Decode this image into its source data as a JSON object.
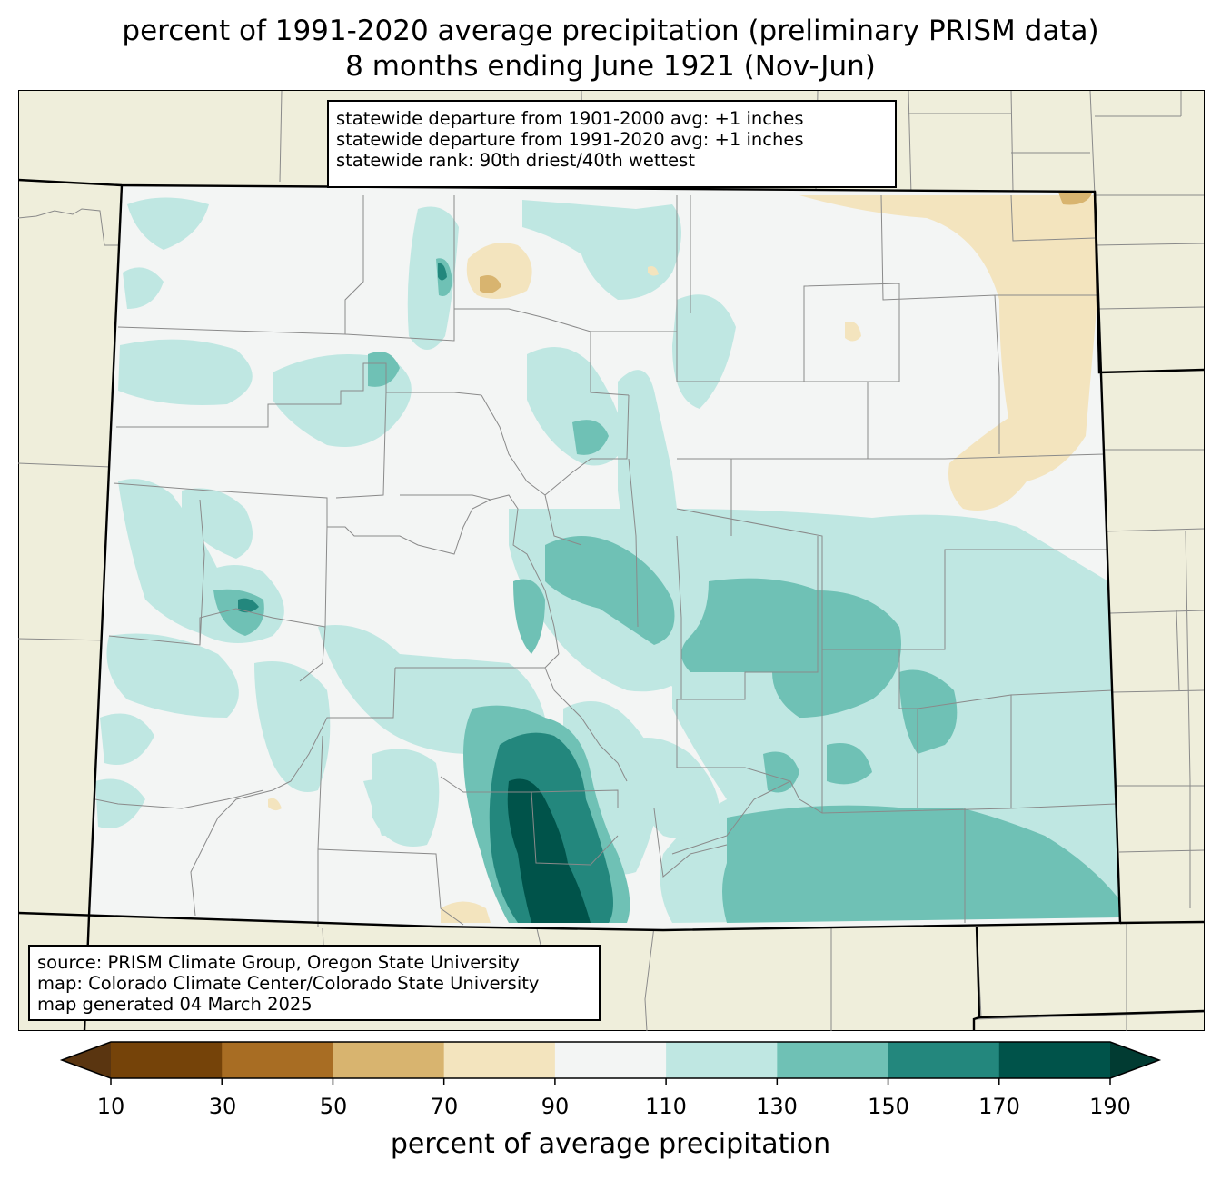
{
  "title": {
    "line1": "percent of 1991-2020 average precipitation (preliminary PRISM data)",
    "line2": "8 months ending June 1921 (Nov-Jun)"
  },
  "stats_box": {
    "line1": "statewide departure from 1901-2000 avg: +1 inches",
    "line2": "statewide departure from 1991-2020 avg: +1 inches",
    "line3": "statewide rank: 90th driest/40th wettest"
  },
  "source_box": {
    "line1": "source: PRISM Climate Group, Oregon State University",
    "line2": "map: Colorado Climate Center/Colorado State University",
    "line3": "map generated 04 March 2025"
  },
  "colorbar": {
    "label": "percent of average precipitation",
    "ticks": [
      "10",
      "30",
      "50",
      "70",
      "90",
      "110",
      "130",
      "150",
      "170",
      "190"
    ],
    "colors": [
      "#5a3510",
      "#754309",
      "#a86d23",
      "#d8b46f",
      "#f3e4be",
      "#f3f5f4",
      "#bfe7e2",
      "#6fc1b5",
      "#23877d",
      "#00534a",
      "#013b32"
    ]
  },
  "map_colors": {
    "land_outside": "#efeedb",
    "pct_90_110": "#f3f5f4",
    "pct_110_130": "#bfe7e2",
    "pct_130_150": "#6fc1b5",
    "pct_150_170": "#23877d",
    "pct_170_190": "#00534a",
    "pct_70_90": "#f3e4be",
    "pct_50_70": "#d8b46f"
  }
}
